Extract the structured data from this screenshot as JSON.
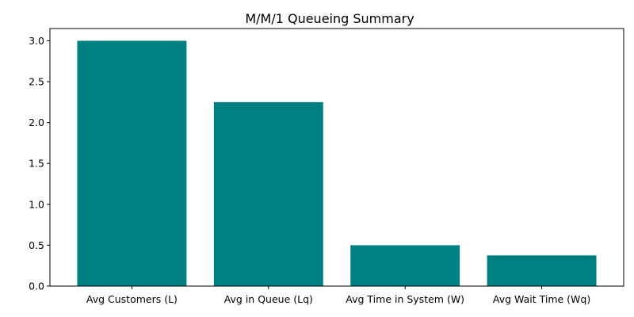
{
  "chart_data": {
    "type": "bar",
    "title": "M/M/1 Queueing Summary",
    "xlabel": "",
    "ylabel": "",
    "categories": [
      "Avg Customers (L)",
      "Avg in Queue (Lq)",
      "Avg Time in System (W)",
      "Avg Wait Time (Wq)"
    ],
    "values": [
      3.0,
      2.25,
      0.5,
      0.375
    ],
    "ylim": [
      0,
      3.15
    ],
    "yticks": [
      0.0,
      0.5,
      1.0,
      1.5,
      2.0,
      2.5,
      3.0
    ],
    "ytick_labels": [
      "0.0",
      "0.5",
      "1.0",
      "1.5",
      "2.0",
      "2.5",
      "3.0"
    ],
    "bar_color": "#008080",
    "grid": false,
    "legend": "none"
  }
}
